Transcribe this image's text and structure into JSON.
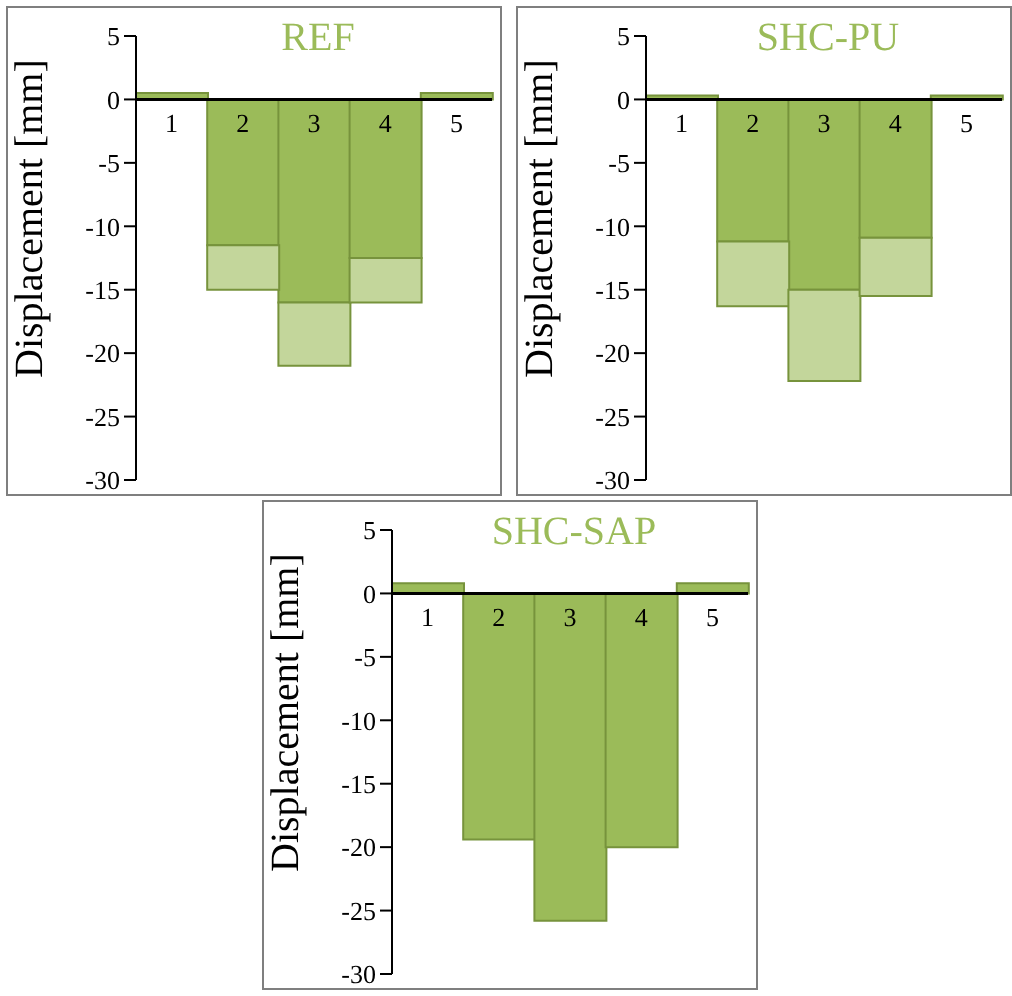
{
  "chart_data": [
    {
      "type": "bar",
      "title": "REF",
      "ylabel": "Displacement [mm]",
      "categories": [
        "1",
        "2",
        "3",
        "4",
        "5"
      ],
      "stacked": true,
      "series": [
        {
          "color": "#9bbb59",
          "values": [
            0.5,
            -11.5,
            -16,
            -12.5,
            0.5
          ]
        },
        {
          "color": "#c3d69b",
          "values": [
            0,
            -3.5,
            -5,
            -3.5,
            0
          ]
        }
      ],
      "ylim": [
        -30,
        5
      ],
      "yticks": [
        -30,
        -25,
        -20,
        -15,
        -10,
        -5,
        0,
        5
      ],
      "grid": false,
      "legend": false
    },
    {
      "type": "bar",
      "title": "SHC-PU",
      "ylabel": "Displacement [mm]",
      "categories": [
        "1",
        "2",
        "3",
        "4",
        "5"
      ],
      "stacked": true,
      "series": [
        {
          "color": "#9bbb59",
          "values": [
            0.3,
            -11.2,
            -15,
            -10.9,
            0.3
          ]
        },
        {
          "color": "#c3d69b",
          "values": [
            0,
            -5.1,
            -7.2,
            -4.6,
            0
          ]
        }
      ],
      "ylim": [
        -30,
        5
      ],
      "yticks": [
        -30,
        -25,
        -20,
        -15,
        -10,
        -5,
        0,
        5
      ],
      "grid": false,
      "legend": false
    },
    {
      "type": "bar",
      "title": "SHC-SAP",
      "ylabel": "Displacement [mm]",
      "categories": [
        "1",
        "2",
        "3",
        "4",
        "5"
      ],
      "series": [
        {
          "color": "#9bbb59",
          "values": [
            0.8,
            -19.4,
            -25.8,
            -20,
            0.8
          ]
        }
      ],
      "ylim": [
        -30,
        5
      ],
      "yticks": [
        -30,
        -25,
        -20,
        -15,
        -10,
        -5,
        0,
        5
      ],
      "grid": false,
      "legend": false
    }
  ]
}
